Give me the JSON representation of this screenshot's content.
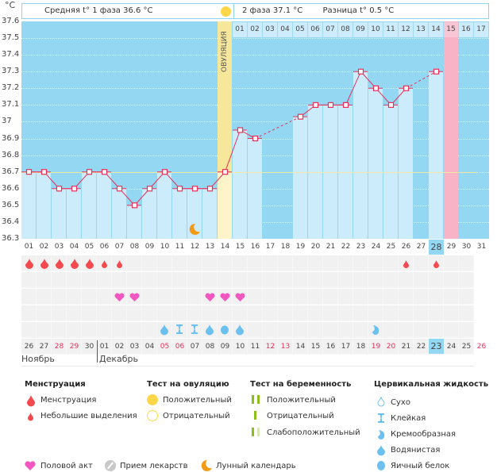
{
  "header": {
    "unit": "°C",
    "phase1": "Средняя t° 1 фаза 36.6 °C",
    "phase2": "2 фаза 37.1 °C",
    "diff": "Разница t° 0.5 °C",
    "ovulation_label": "ОВУЛЯЦИЯ",
    "post_ovulation_days": [
      "01",
      "02",
      "03",
      "04",
      "05",
      "06",
      "07",
      "08",
      "09",
      "10",
      "11",
      "12",
      "13",
      "14",
      "15",
      "16",
      "17"
    ]
  },
  "colors": {
    "plot_bg": "#93d7f2",
    "bar": "#cdecfb",
    "line": "#e8305b",
    "ovulation": "#f7e79a",
    "expected_period": "#f9b3c7",
    "coverline": "#f5e9a0",
    "today": "#93d7f2",
    "weekend": "#e8305b"
  },
  "chart_data": {
    "type": "line",
    "title": "Basal body temperature chart",
    "ylabel": "°C",
    "ylim": [
      36.3,
      37.6
    ],
    "yticks": [
      "37.6",
      "37.5",
      "37.4",
      "37.3",
      "37.2",
      "37.1",
      "37",
      "36.9",
      "36.8",
      "36.7",
      "36.6",
      "36.5",
      "36.4",
      "36.3"
    ],
    "coverline": 36.7,
    "ovulation_day": 14,
    "expected_period_day": 29,
    "today_cycle_day": 28,
    "cycle_days": [
      "01",
      "02",
      "03",
      "04",
      "05",
      "06",
      "07",
      "08",
      "09",
      "10",
      "11",
      "12",
      "13",
      "14",
      "15",
      "16",
      "17",
      "18",
      "19",
      "20",
      "21",
      "22",
      "23",
      "24",
      "25",
      "26",
      "27",
      "28",
      "29",
      "30",
      "31"
    ],
    "temperatures": [
      36.7,
      36.7,
      36.6,
      36.6,
      36.7,
      36.7,
      36.6,
      36.5,
      36.6,
      36.7,
      36.6,
      36.6,
      36.6,
      36.7,
      36.95,
      36.9,
      null,
      null,
      37.03,
      37.1,
      37.1,
      37.1,
      37.3,
      37.2,
      37.1,
      37.2,
      null,
      37.3,
      null,
      null,
      null
    ],
    "moon_day": 12
  },
  "events": {
    "menstruation": {
      "1": "heavy",
      "2": "heavy",
      "3": "heavy",
      "4": "heavy",
      "5": "heavy",
      "6": "light",
      "7": "light",
      "26": "light",
      "28": "light"
    },
    "intercourse": [
      7,
      8,
      13,
      14,
      15
    ],
    "cervical_fluid": {
      "10": "watery",
      "11": "sticky",
      "12": "sticky",
      "13": "watery",
      "14": "egg-white",
      "15": "watery",
      "24": "creamy"
    }
  },
  "calendar": {
    "dates": [
      {
        "d": "26",
        "weekend": false
      },
      {
        "d": "27",
        "weekend": false
      },
      {
        "d": "28",
        "weekend": true
      },
      {
        "d": "29",
        "weekend": true
      },
      {
        "d": "30",
        "weekend": false
      },
      {
        "d": "01",
        "weekend": false
      },
      {
        "d": "02",
        "weekend": false
      },
      {
        "d": "03",
        "weekend": false
      },
      {
        "d": "04",
        "weekend": false
      },
      {
        "d": "05",
        "weekend": true
      },
      {
        "d": "06",
        "weekend": true
      },
      {
        "d": "07",
        "weekend": false
      },
      {
        "d": "08",
        "weekend": false
      },
      {
        "d": "09",
        "weekend": false
      },
      {
        "d": "10",
        "weekend": false
      },
      {
        "d": "11",
        "weekend": false
      },
      {
        "d": "12",
        "weekend": true
      },
      {
        "d": "13",
        "weekend": true
      },
      {
        "d": "14",
        "weekend": false
      },
      {
        "d": "15",
        "weekend": false
      },
      {
        "d": "16",
        "weekend": false
      },
      {
        "d": "17",
        "weekend": false
      },
      {
        "d": "18",
        "weekend": false
      },
      {
        "d": "19",
        "weekend": true
      },
      {
        "d": "20",
        "weekend": true
      },
      {
        "d": "21",
        "weekend": false
      },
      {
        "d": "22",
        "weekend": false
      },
      {
        "d": "23",
        "weekend": false,
        "today": true
      },
      {
        "d": "24",
        "weekend": false
      },
      {
        "d": "25",
        "weekend": false
      },
      {
        "d": "26",
        "weekend": true
      }
    ],
    "month1": "Ноябрь",
    "month2": "Декабрь"
  },
  "legend": {
    "menstruation": {
      "title": "Менструация",
      "items": [
        "Менструация",
        "Небольшие выделения"
      ]
    },
    "ovulation_test": {
      "title": "Тест на овуляцию",
      "items": [
        "Положительный",
        "Отрицательный"
      ]
    },
    "pregnancy_test": {
      "title": "Тест на беременность",
      "items": [
        "Положительный",
        "Отрицательный",
        "Слабоположительный"
      ]
    },
    "cervical_fluid": {
      "title": "Цервикальная жидкость",
      "items": [
        "Сухо",
        "Клейкая",
        "Кремообразная",
        "Водянистая",
        "Яичный белок"
      ]
    },
    "other": [
      "Половой акт",
      "Прием лекарств",
      "Лунный календарь"
    ]
  }
}
